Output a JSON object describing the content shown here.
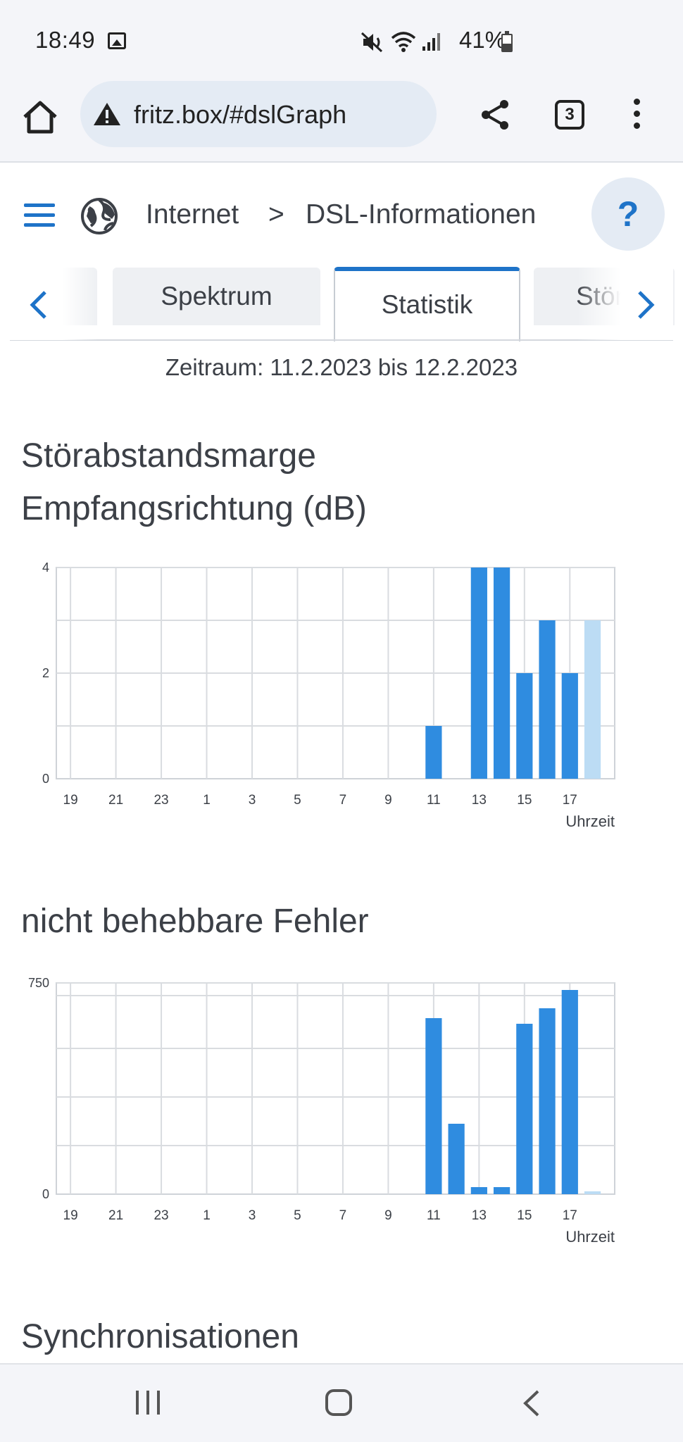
{
  "status_bar": {
    "time": "18:49",
    "battery": "41%",
    "icons": [
      "gallery-icon",
      "mute-icon",
      "wifi-icon",
      "signal-icon",
      "battery-icon"
    ]
  },
  "browser": {
    "url": "fritz.box/#dslGraph",
    "tab_count": "3"
  },
  "header": {
    "breadcrumb_1": "Internet",
    "breadcrumb_sep": ">",
    "breadcrumb_2": "DSL-Informationen",
    "help_label": "?"
  },
  "tabs": {
    "items": [
      {
        "label": "Spektrum"
      },
      {
        "label": "Statistik"
      },
      {
        "label": "Störsi"
      }
    ],
    "active": "Statistik"
  },
  "period": "Zeitraum: 11.2.2023 bis 12.2.2023",
  "sections": {
    "chart1_title_line1": "Störabstandsmarge",
    "chart1_title_line2": "Empfangsrichtung (dB)",
    "chart2_title": "nicht behebbare Fehler",
    "section3_title": "Synchronisationen"
  },
  "colors": {
    "accent": "#1e73c8",
    "bar": "#2f8ce0",
    "bar_current": "#bcdcf4"
  },
  "chart_data": [
    {
      "type": "bar",
      "title": "Störabstandsmarge Empfangsrichtung (dB)",
      "xlabel": "Uhrzeit",
      "ylabel": "",
      "x_ticks": [
        "19",
        "21",
        "23",
        "1",
        "3",
        "5",
        "7",
        "9",
        "11",
        "13",
        "15",
        "17"
      ],
      "ylim": [
        0,
        4
      ],
      "y_ticks": [
        "0",
        "2",
        "4"
      ],
      "categories": [
        "11",
        "12",
        "13",
        "14",
        "15",
        "16",
        "17",
        "18"
      ],
      "values": [
        1,
        0,
        4,
        4,
        2,
        3,
        2,
        3
      ],
      "current_hour_value": 3,
      "grid": true
    },
    {
      "type": "bar",
      "title": "nicht behebbare Fehler",
      "xlabel": "Uhrzeit",
      "ylabel": "",
      "x_ticks": [
        "19",
        "21",
        "23",
        "1",
        "3",
        "5",
        "7",
        "9",
        "11",
        "13",
        "15",
        "17"
      ],
      "ylim": [
        0,
        750
      ],
      "y_ticks": [
        "0",
        "750"
      ],
      "categories": [
        "11",
        "12",
        "13",
        "14",
        "15",
        "16",
        "17",
        "18"
      ],
      "values": [
        625,
        250,
        25,
        25,
        605,
        660,
        725,
        10
      ],
      "current_hour_value": 10,
      "grid": true
    }
  ]
}
